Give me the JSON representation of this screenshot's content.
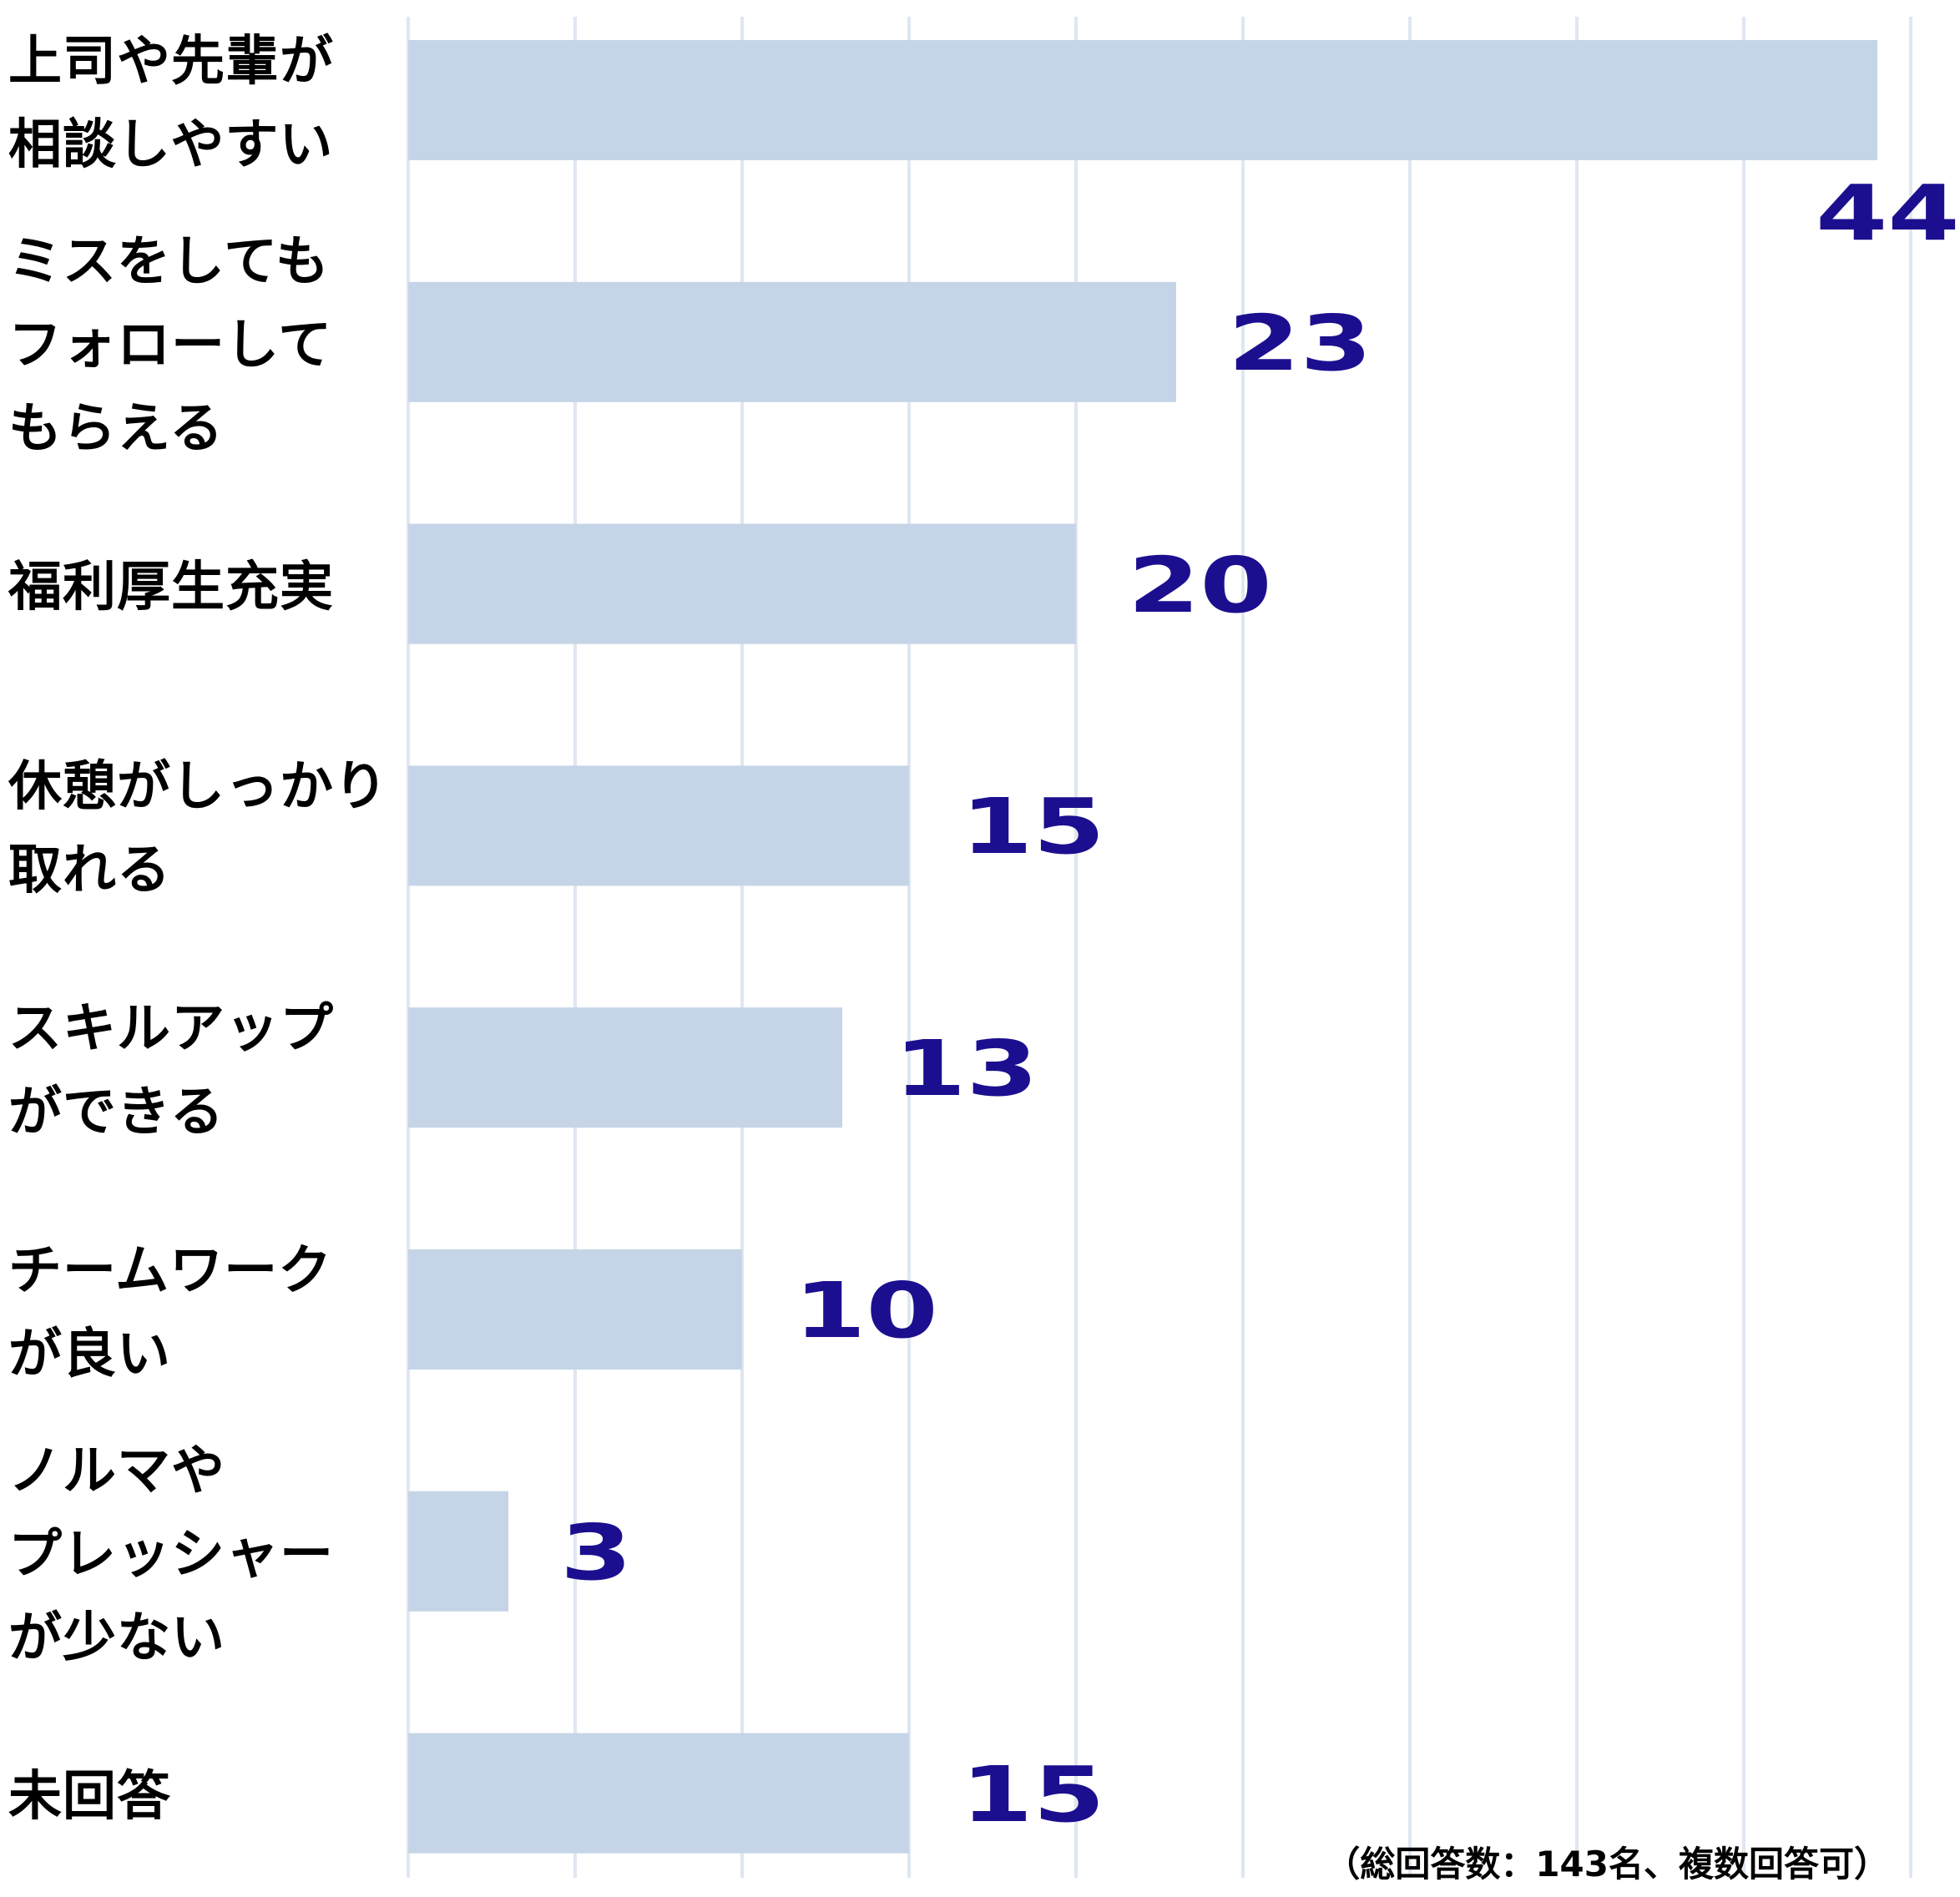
{
  "chart_data": {
    "type": "bar",
    "orientation": "horizontal",
    "categories": [
      "上司や先輩が\n相談しやすい",
      "ミスをしても\nフォローして\nもらえる",
      "福利厚生充実",
      "休憩がしっかり\n取れる",
      "スキルアップ\nができる",
      "チームワーク\nが良い",
      "ノルマや\nプレッシャー\nが少ない",
      "未回答"
    ],
    "values": [
      44,
      23,
      20,
      15,
      13,
      10,
      3,
      15
    ],
    "data_labels": [
      "44",
      "23",
      "20",
      "15",
      "13",
      "10",
      "3",
      "15"
    ],
    "xlim": [
      0,
      45
    ],
    "grid": true,
    "grid_step": 5,
    "axis_tick_labels_shown": false,
    "colors": {
      "bar": "#c5d5e7",
      "grid": "#dfe7f1",
      "value_label": "#1c0f8f"
    },
    "note": "（総回答数：143名、複数回答可）"
  }
}
